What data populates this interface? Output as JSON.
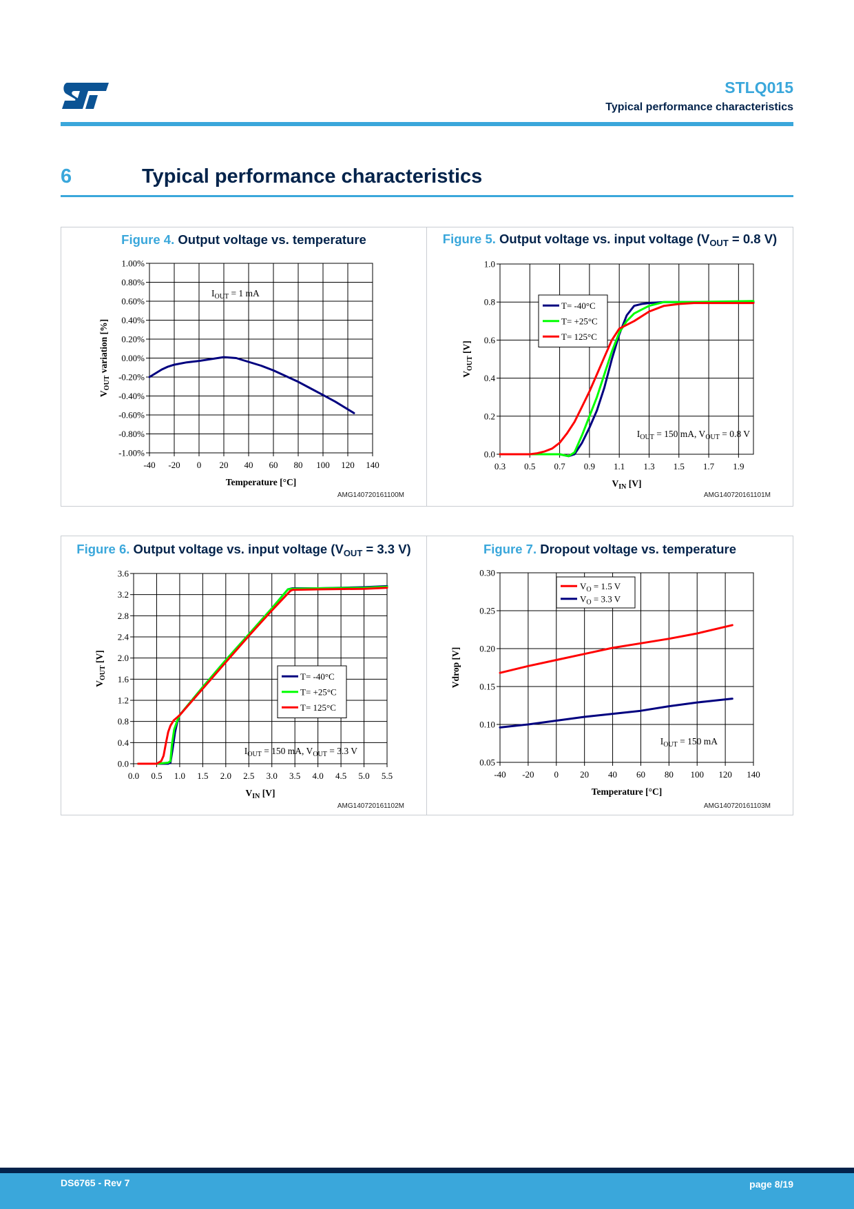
{
  "header": {
    "logo": "st-logo-icon",
    "doc_id": "STLQ015",
    "section_name": "Typical performance characteristics"
  },
  "section": {
    "number": "6",
    "title": "Typical performance characteristics"
  },
  "figures": [
    {
      "num_label": "Figure 4.",
      "title": "Output voltage vs. temperature",
      "code": "AMG140720161100M"
    },
    {
      "num_label": "Figure 5.",
      "title_pre": "Output voltage vs. input voltage (V",
      "title_sub": "OUT",
      "title_post": " = 0.8 V)",
      "code": "AMG140720161101M"
    },
    {
      "num_label": "Figure 6.",
      "title_pre": "Output voltage vs. input voltage (V",
      "title_sub": "OUT",
      "title_post": " = 3.3 V)",
      "code": "AMG140720161102M"
    },
    {
      "num_label": "Figure 7.",
      "title": "Dropout voltage vs. temperature",
      "code": "AMG140720161103M"
    }
  ],
  "chart_data": [
    {
      "type": "line",
      "title": "Output voltage vs. temperature",
      "xlabel": "Temperature [°C]",
      "ylabel": "VOUT variation [%]",
      "xlim": [
        -40,
        140
      ],
      "ylim": [
        -1.0,
        1.0
      ],
      "xticks": [
        "-40",
        "-20",
        "0",
        "20",
        "40",
        "60",
        "80",
        "100",
        "120",
        "140"
      ],
      "yticks": [
        "1.00%",
        "0.80%",
        "0.60%",
        "0.40%",
        "0.20%",
        "0.00%",
        "-0.20%",
        "-0.40%",
        "-0.60%",
        "-0.80%",
        "-1.00%"
      ],
      "grid": true,
      "annotation": {
        "main": "I",
        "sub": "OUT",
        "rest": " = 1 mA"
      },
      "series": [
        {
          "name": "VOUT variation",
          "color": "#00007f",
          "x": [
            -40,
            -30,
            -25,
            -20,
            -10,
            0,
            10,
            20,
            30,
            40,
            50,
            60,
            70,
            80,
            90,
            100,
            110,
            125
          ],
          "y": [
            -0.2,
            -0.12,
            -0.09,
            -0.07,
            -0.045,
            -0.03,
            -0.01,
            0.01,
            0.0,
            -0.04,
            -0.08,
            -0.13,
            -0.19,
            -0.25,
            -0.32,
            -0.39,
            -0.46,
            -0.58
          ]
        }
      ]
    },
    {
      "type": "line",
      "title": "Output voltage vs. input voltage (VOUT = 0.8 V)",
      "xlabel": "VIN [V]",
      "ylabel": "VOUT [V]",
      "xlim": [
        0.3,
        2.0
      ],
      "ylim": [
        0.0,
        1.0
      ],
      "xticks": [
        "0.3",
        "0.5",
        "0.7",
        "0.9",
        "1.1",
        "1.3",
        "1.5",
        "1.7",
        "1.9"
      ],
      "yticks": [
        "1.0",
        "0.8",
        "0.6",
        "0.4",
        "0.2",
        "0.0"
      ],
      "grid": true,
      "legend": "top-left",
      "annotation": {
        "main": "I",
        "sub": "OUT",
        "rest": " = 150 mA, V",
        "sub2": "OUT",
        "rest2": " = 0.8 V"
      },
      "series": [
        {
          "name": "T= -40°C",
          "color": "#00007f",
          "x": [
            0.3,
            0.5,
            0.7,
            0.76,
            0.8,
            0.85,
            0.9,
            0.95,
            1.0,
            1.05,
            1.1,
            1.15,
            1.2,
            1.25,
            1.3,
            1.4,
            1.6,
            2.0
          ],
          "y": [
            0.0,
            0.0,
            0.0,
            -0.01,
            0.0,
            0.06,
            0.14,
            0.23,
            0.35,
            0.5,
            0.63,
            0.73,
            0.78,
            0.79,
            0.795,
            0.8,
            0.8,
            0.8
          ]
        },
        {
          "name": "T= +25°C",
          "color": "#00ff00",
          "x": [
            0.3,
            0.5,
            0.7,
            0.76,
            0.8,
            0.85,
            0.9,
            0.95,
            1.0,
            1.05,
            1.1,
            1.15,
            1.2,
            1.25,
            1.3,
            1.4,
            1.6,
            2.0
          ],
          "y": [
            0.0,
            0.0,
            0.0,
            -0.01,
            0.01,
            0.1,
            0.2,
            0.3,
            0.42,
            0.54,
            0.64,
            0.7,
            0.74,
            0.76,
            0.78,
            0.8,
            0.8,
            0.805
          ]
        },
        {
          "name": "T= 125°C",
          "color": "#ff0000",
          "x": [
            0.3,
            0.5,
            0.55,
            0.6,
            0.65,
            0.7,
            0.75,
            0.8,
            0.85,
            0.9,
            0.95,
            1.0,
            1.05,
            1.1,
            1.15,
            1.2,
            1.3,
            1.4,
            1.5,
            1.6,
            2.0
          ],
          "y": [
            0.0,
            0.0,
            0.005,
            0.015,
            0.03,
            0.06,
            0.11,
            0.17,
            0.25,
            0.33,
            0.42,
            0.51,
            0.6,
            0.66,
            0.68,
            0.7,
            0.75,
            0.78,
            0.79,
            0.795,
            0.795
          ]
        }
      ]
    },
    {
      "type": "line",
      "title": "Output voltage vs. input voltage (VOUT = 3.3 V)",
      "xlabel": "VIN [V]",
      "ylabel": "VOUT [V]",
      "xlim": [
        0.0,
        5.5
      ],
      "ylim": [
        0.0,
        3.6
      ],
      "xticks": [
        "0.0",
        "0.5",
        "1.0",
        "1.5",
        "2.0",
        "2.5",
        "3.0",
        "3.5",
        "4.0",
        "4.5",
        "5.0",
        "5.5"
      ],
      "yticks": [
        "3.6",
        "3.2",
        "2.8",
        "2.4",
        "2.0",
        "1.6",
        "1.2",
        "0.8",
        "0.4",
        "0.0"
      ],
      "grid": true,
      "legend": "center-right",
      "annotation": {
        "main": "I",
        "sub": "OUT",
        "rest": " = 150 mA, V",
        "sub2": "OUT",
        "rest2": " = 3.3 V"
      },
      "series": [
        {
          "name": "T= -40°C",
          "color": "#00007f",
          "x": [
            0.1,
            0.5,
            0.75,
            0.8,
            0.85,
            0.9,
            0.95,
            1.0,
            1.5,
            2.0,
            2.5,
            3.0,
            3.35,
            3.45,
            4.0,
            5.0,
            5.5
          ],
          "y": [
            0.0,
            0.0,
            0.0,
            0.02,
            0.3,
            0.6,
            0.8,
            0.92,
            1.45,
            1.96,
            2.45,
            2.94,
            3.3,
            3.32,
            3.32,
            3.34,
            3.36
          ]
        },
        {
          "name": "T= +25°C",
          "color": "#00ff00",
          "x": [
            0.1,
            0.5,
            0.75,
            0.8,
            0.83,
            0.88,
            0.95,
            1.0,
            1.5,
            2.0,
            2.5,
            3.0,
            3.35,
            3.45,
            4.0,
            5.0,
            5.5
          ],
          "y": [
            0.0,
            0.0,
            0.02,
            0.05,
            0.35,
            0.65,
            0.82,
            0.92,
            1.45,
            1.96,
            2.45,
            2.94,
            3.3,
            3.31,
            3.32,
            3.33,
            3.35
          ]
        },
        {
          "name": "T= 125°C",
          "color": "#ff0000",
          "x": [
            0.1,
            0.5,
            0.6,
            0.65,
            0.7,
            0.75,
            0.8,
            0.87,
            0.95,
            1.0,
            1.5,
            2.0,
            2.5,
            3.0,
            3.4,
            3.45,
            4.0,
            5.0,
            5.5
          ],
          "y": [
            0.0,
            0.0,
            0.05,
            0.15,
            0.38,
            0.6,
            0.72,
            0.82,
            0.88,
            0.92,
            1.42,
            1.92,
            2.42,
            2.9,
            3.27,
            3.29,
            3.3,
            3.31,
            3.33
          ]
        }
      ]
    },
    {
      "type": "line",
      "title": "Dropout voltage vs. temperature",
      "xlabel": "Temperature [°C]",
      "ylabel": "Vdrop [V]",
      "xlim": [
        -40,
        140
      ],
      "ylim": [
        0.05,
        0.3
      ],
      "xticks": [
        "-40",
        "-20",
        "0",
        "20",
        "40",
        "60",
        "80",
        "100",
        "120",
        "140"
      ],
      "yticks": [
        "0.30",
        "0.25",
        "0.20",
        "0.15",
        "0.10",
        "0.05"
      ],
      "grid": true,
      "legend": "top-left",
      "annotation": {
        "main": "I",
        "sub": "OUT",
        "rest": " = 150 mA"
      },
      "series": [
        {
          "name": "VO = 1.5 V",
          "legend_main": "V",
          "legend_sub": "O",
          "legend_rest": " = 1.5 V",
          "color": "#ff0000",
          "x": [
            -40,
            -20,
            0,
            20,
            40,
            60,
            80,
            100,
            125
          ],
          "y": [
            0.168,
            0.177,
            0.185,
            0.193,
            0.201,
            0.207,
            0.213,
            0.22,
            0.231
          ]
        },
        {
          "name": "VO = 3.3 V",
          "legend_main": "V",
          "legend_sub": "O",
          "legend_rest": " = 3.3 V",
          "color": "#00007f",
          "x": [
            -40,
            -20,
            0,
            20,
            40,
            60,
            80,
            100,
            125
          ],
          "y": [
            0.096,
            0.1,
            0.105,
            0.11,
            0.114,
            0.118,
            0.124,
            0.129,
            0.134
          ]
        }
      ]
    }
  ],
  "footer": {
    "doc_rev": "DS6765 - Rev 7",
    "page": "page 8/19"
  },
  "colors": {
    "accent": "#3aa7db",
    "navy": "#03234b",
    "logo": "#0b5394"
  }
}
